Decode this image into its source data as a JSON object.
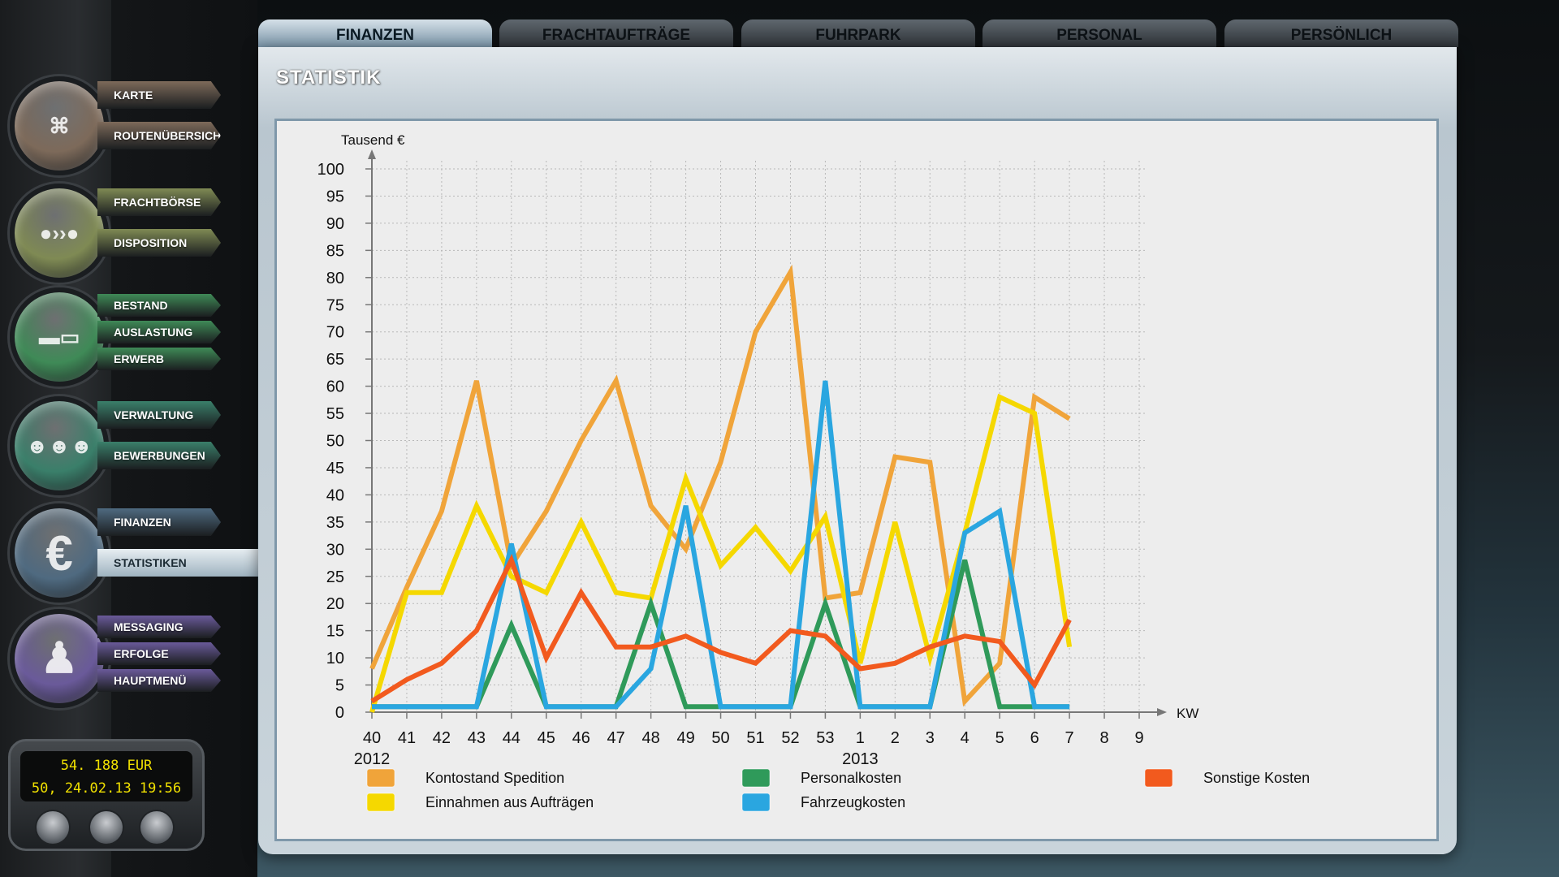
{
  "sidebar": {
    "groups": [
      {
        "icon": "europe-map-icon",
        "color": "#7d6a5a",
        "items": [
          "KARTE",
          "ROUTENÜBERSICHT"
        ]
      },
      {
        "icon": "freight-route-icon",
        "color": "#7f8a54",
        "items": [
          "FRACHTBÖRSE",
          "DISPOSITION"
        ]
      },
      {
        "icon": "truck-icon",
        "color": "#3f8a57",
        "items": [
          "BESTAND",
          "AUSLASTUNG",
          "ERWERB"
        ]
      },
      {
        "icon": "people-icon",
        "color": "#3a7f6a",
        "items": [
          "VERWALTUNG",
          "BEWERBUNGEN"
        ]
      },
      {
        "icon": "euro-icon",
        "color": "#4f6a80",
        "items": [
          "FINANZEN",
          "STATISTIKEN"
        ]
      },
      {
        "icon": "user-icon",
        "color": "#6a5a9a",
        "items": [
          "MESSAGING",
          "ERFOLGE",
          "HAUPTMENÜ"
        ]
      }
    ],
    "active_item": "STATISTIKEN"
  },
  "status": {
    "balance": "54. 188 EUR",
    "datetime": "50, 24.02.13 19:56"
  },
  "tabs": [
    {
      "label": "FINANZEN",
      "active": true
    },
    {
      "label": "FRACHTAUFTRÄGE",
      "active": false
    },
    {
      "label": "FUHRPARK",
      "active": false
    },
    {
      "label": "PERSONAL",
      "active": false
    },
    {
      "label": "PERSÖNLICH",
      "active": false
    }
  ],
  "panel": {
    "title": "STATISTIK"
  },
  "chart_data": {
    "type": "line",
    "ylabel": "Tausend  €",
    "xlabel": "KW",
    "ylim": [
      0,
      100
    ],
    "yticks": [
      0,
      5,
      10,
      15,
      20,
      25,
      30,
      35,
      40,
      45,
      50,
      55,
      60,
      65,
      70,
      75,
      80,
      85,
      90,
      95,
      100
    ],
    "categories": [
      "40",
      "41",
      "42",
      "43",
      "44",
      "45",
      "46",
      "47",
      "48",
      "49",
      "50",
      "51",
      "52",
      "53",
      "1",
      "2",
      "3",
      "4",
      "5",
      "6",
      "7",
      "8",
      "9"
    ],
    "year_labels": [
      {
        "at": "40",
        "text": "2012"
      },
      {
        "at": "1",
        "text": "2013"
      }
    ],
    "grid": true,
    "legend": "bottom",
    "series": [
      {
        "name": "Kontostand Spedition",
        "color": "#f0a43a",
        "values": [
          8,
          23,
          37,
          61,
          27,
          37,
          50,
          61,
          38,
          30,
          46,
          70,
          81,
          21,
          22,
          47,
          46,
          2,
          9,
          58,
          54,
          null,
          null
        ]
      },
      {
        "name": "Einnahmen aus Aufträgen",
        "color": "#f5d800",
        "values": [
          0,
          22,
          22,
          38,
          25,
          22,
          35,
          22,
          21,
          43,
          27,
          34,
          26,
          36,
          9,
          35,
          10,
          33,
          58,
          55,
          12,
          null,
          null
        ]
      },
      {
        "name": "Personalkosten",
        "color": "#2f9a5a",
        "values": [
          1,
          1,
          1,
          1,
          16,
          1,
          1,
          1,
          20,
          1,
          1,
          1,
          1,
          20,
          1,
          1,
          1,
          28,
          1,
          1,
          1,
          null,
          null
        ]
      },
      {
        "name": "Fahrzeugkosten",
        "color": "#2aa6e0",
        "values": [
          1,
          1,
          1,
          1,
          31,
          1,
          1,
          1,
          8,
          38,
          1,
          1,
          1,
          61,
          1,
          1,
          1,
          33,
          37,
          1,
          1,
          null,
          null
        ]
      },
      {
        "name": "Sonstige Kosten",
        "color": "#f25a1e",
        "values": [
          2,
          6,
          9,
          15,
          28,
          10,
          22,
          12,
          12,
          14,
          11,
          9,
          15,
          14,
          8,
          9,
          12,
          14,
          13,
          5,
          17,
          null,
          null
        ]
      }
    ]
  }
}
